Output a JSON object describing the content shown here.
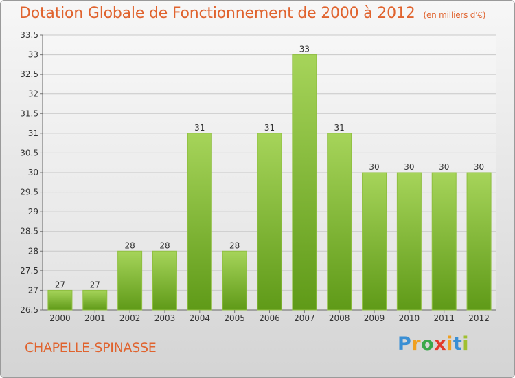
{
  "title": "Dotation Globale de Fonctionnement de 2000 à 2012",
  "unit": "(en milliers d'€)",
  "commune": "CHAPELLE-SPINASSE",
  "logo": {
    "letters": [
      "P",
      "r",
      "o",
      "x",
      "i",
      "t",
      "i"
    ],
    "colors": [
      "#3a8fd4",
      "#f0a020",
      "#3aa84a",
      "#e23a2a",
      "#f0a020",
      "#3a8fd4",
      "#a0c030"
    ]
  },
  "colors": {
    "bar_top": "#a6d45a",
    "bar_bottom": "#5f9a18",
    "title": "#e0632e"
  },
  "chart_data": {
    "type": "bar",
    "title": "Dotation Globale de Fonctionnement de 2000 à 2012",
    "categories": [
      "2000",
      "2001",
      "2002",
      "2003",
      "2004",
      "2005",
      "2006",
      "2007",
      "2008",
      "2009",
      "2010",
      "2011",
      "2012"
    ],
    "values": [
      27,
      27,
      28,
      28,
      31,
      28,
      31,
      33,
      31,
      30,
      30,
      30,
      30
    ],
    "value_labels": [
      "27",
      "27",
      "28",
      "28",
      "31",
      "28",
      "31",
      "33",
      "31",
      "30",
      "30",
      "30",
      "30"
    ],
    "ylim": [
      26.5,
      33.5
    ],
    "yticks": [
      "26.5",
      "27",
      "27.5",
      "28",
      "28.5",
      "29",
      "29.5",
      "30",
      "30.5",
      "31",
      "31.5",
      "32",
      "32.5",
      "33",
      "33.5"
    ],
    "grid": true
  }
}
